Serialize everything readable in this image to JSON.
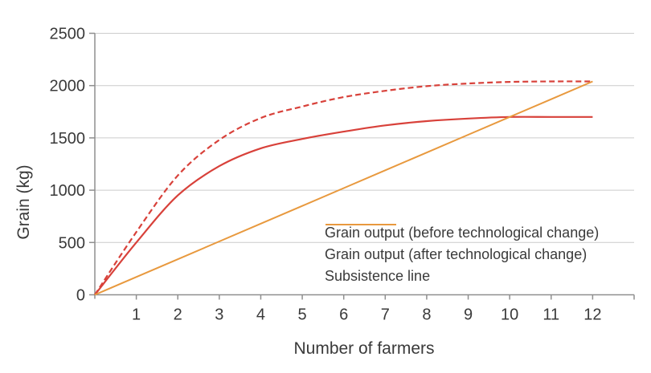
{
  "chart": {
    "ylabel": "Grain (kg)",
    "xlabel": "Number of farmers"
  },
  "legend": {
    "items": [
      {
        "label": "Grain output (before technological change)",
        "color": "#d8413a",
        "line_style": "solid"
      },
      {
        "label": "Grain output (after technological change)",
        "color": "#d8413a",
        "line_style": "dashed"
      },
      {
        "label": "Subsistence line",
        "color": "#e8993e",
        "line_style": "solid"
      }
    ]
  },
  "chart_data": {
    "type": "line",
    "title": "",
    "xlabel": "Number of farmers",
    "ylabel": "Grain (kg)",
    "x": [
      0,
      1,
      2,
      3,
      4,
      5,
      6,
      7,
      8,
      9,
      10,
      11,
      12
    ],
    "series": [
      {
        "name": "Grain output (before technological change)",
        "color": "#d8413a",
        "style": "solid",
        "smooth": true,
        "width": 2.2,
        "values": [
          0,
          500,
          950,
          1230,
          1400,
          1490,
          1560,
          1620,
          1660,
          1685,
          1700,
          1700,
          1700
        ]
      },
      {
        "name": "Grain output (after technological change)",
        "color": "#d8413a",
        "style": "dashed",
        "smooth": true,
        "width": 2.2,
        "values": [
          0,
          600,
          1140,
          1480,
          1690,
          1800,
          1890,
          1950,
          1995,
          2020,
          2035,
          2040,
          2040
        ]
      },
      {
        "name": "Subsistence line",
        "color": "#e8993e",
        "style": "solid",
        "smooth": false,
        "width": 2,
        "values": [
          0,
          170,
          340,
          510,
          680,
          850,
          1020,
          1190,
          1360,
          1530,
          1700,
          1870,
          2040
        ]
      }
    ],
    "x_ticks": [
      1,
      2,
      3,
      4,
      5,
      6,
      7,
      8,
      9,
      10,
      11,
      12
    ],
    "y_ticks": [
      0,
      500,
      1000,
      1500,
      2000,
      2500
    ],
    "xlim": [
      0,
      13
    ],
    "ylim": [
      0,
      2500
    ],
    "grid": "horizontal",
    "legend_position": "inside-bottom-right"
  },
  "style": {
    "axis_color": "#8f8f8f",
    "grid_color": "#cccccc",
    "tick_text_color": "#3a3a3a",
    "background": "#ffffff",
    "tick_font_size": 20
  }
}
